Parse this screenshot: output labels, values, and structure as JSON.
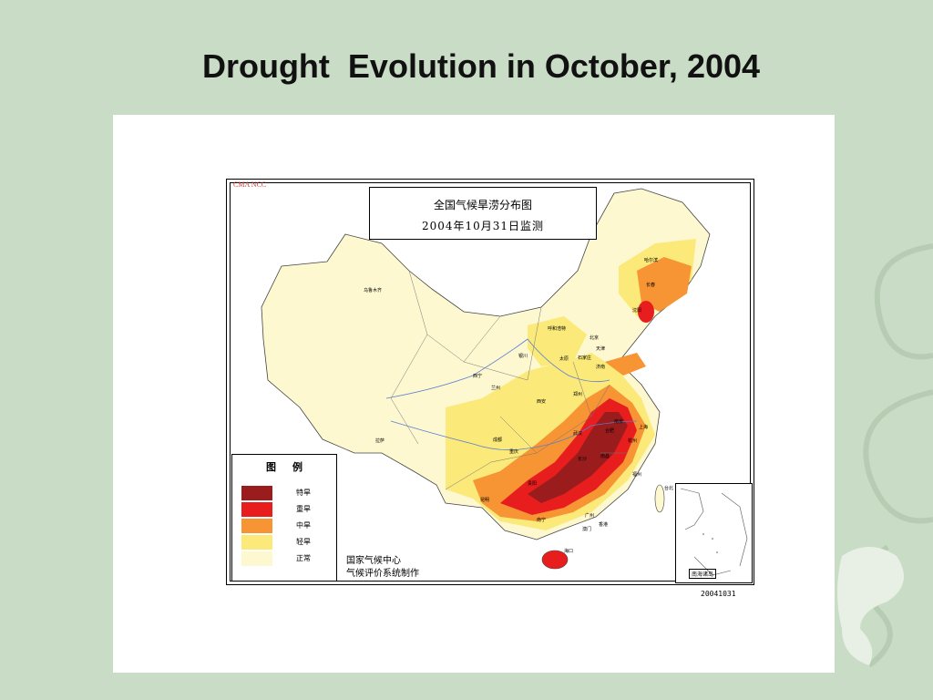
{
  "slide": {
    "title": "Drought  Evolution in October, 2004"
  },
  "map": {
    "agency_tag": "CMA  NCC",
    "title_line1": "全国气候旱涝分布图",
    "title_line2": "2004年10月31日监测",
    "legend": {
      "heading": "图例",
      "classes": [
        {
          "label": "特旱",
          "color": "#9b1c1c"
        },
        {
          "label": "重旱",
          "color": "#e81e1e"
        },
        {
          "label": "中旱",
          "color": "#f79433"
        },
        {
          "label": "轻旱",
          "color": "#fbe97a"
        },
        {
          "label": "正常",
          "color": "#fdf8cf"
        }
      ]
    },
    "credit_line1": "国家气候中心",
    "credit_line2": "气候评价系统制作",
    "inset_label": "南海诸岛",
    "date_stamp": "20041031",
    "cities": [
      "乌鲁木齐",
      "哈尔滨",
      "长春",
      "沈阳",
      "呼和浩特",
      "北京",
      "天津",
      "太原",
      "石家庄",
      "济南",
      "银川",
      "西宁",
      "兰州",
      "西安",
      "郑州",
      "拉萨",
      "成都",
      "重庆",
      "武汉",
      "南京",
      "上海",
      "合肥",
      "杭州",
      "长沙",
      "南昌",
      "福州",
      "贵阳",
      "昆明",
      "南宁",
      "广州",
      "香港",
      "澳门",
      "海口",
      "台北"
    ]
  }
}
